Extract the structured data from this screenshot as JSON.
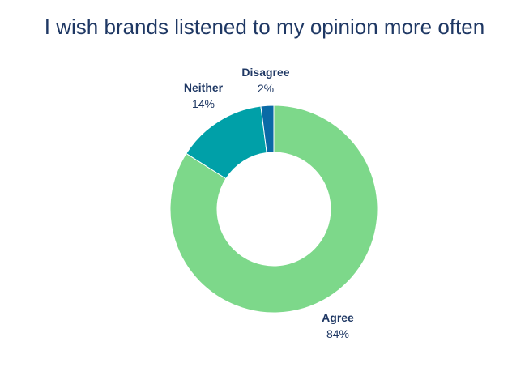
{
  "chart_data": {
    "type": "pie",
    "title": "I wish brands listened to my opinion more often",
    "hole": true,
    "slices": [
      {
        "label": "Agree",
        "value": 84,
        "display": "84%",
        "color": "#7dd88a"
      },
      {
        "label": "Neither",
        "value": 14,
        "display": "14%",
        "color": "#00a0a8"
      },
      {
        "label": "Disagree",
        "value": 2,
        "display": "2%",
        "color": "#0a6aa6"
      }
    ]
  }
}
